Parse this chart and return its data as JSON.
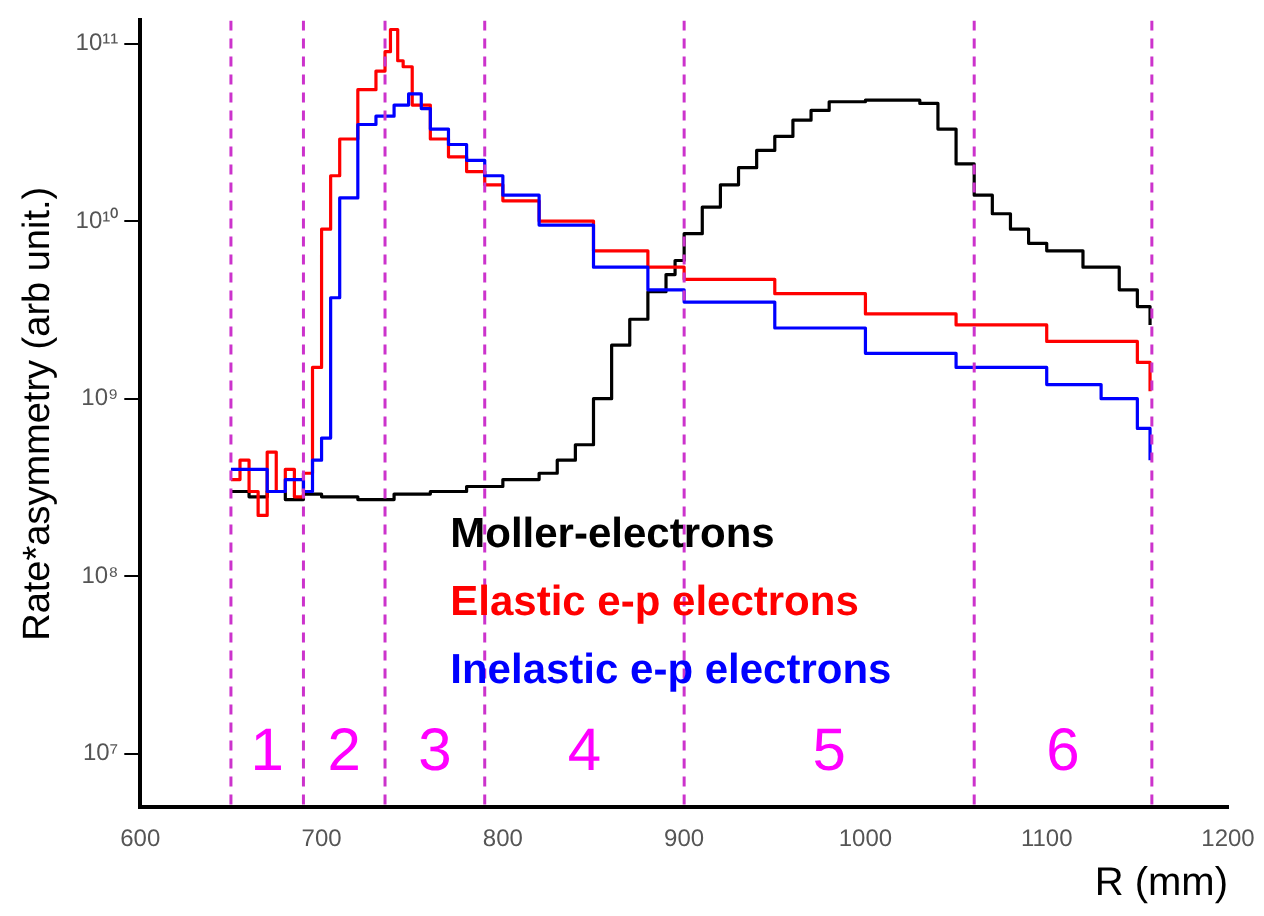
{
  "chart_data": {
    "type": "step",
    "ylabel": "Rate*asymmetry (arb unit.)",
    "xlabel": "R (mm)",
    "log": "y",
    "xlim": [
      600,
      1200
    ],
    "xticks": [
      600,
      700,
      800,
      900,
      1000,
      1100,
      1200
    ],
    "ylim": [
      5000000,
      135000000000
    ],
    "yticks": [
      {
        "value": 10000000,
        "label": "10⁷"
      },
      {
        "value": 100000000,
        "label": "10⁸"
      },
      {
        "value": 1000000000,
        "label": "10⁹"
      },
      {
        "value": 10000000000,
        "label": "10¹⁰"
      },
      {
        "value": 100000000000,
        "label": "10¹¹"
      }
    ],
    "grid": false,
    "legend": "bottom",
    "marker": "none",
    "series": [
      {
        "name": "Moller-electrons",
        "color": "#000000",
        "x": [
          650,
          660,
          670,
          680,
          690,
          700,
          720,
          740,
          760,
          780,
          800,
          820,
          830,
          840,
          850,
          860,
          870,
          880,
          890,
          895,
          900,
          910,
          920,
          930,
          940,
          950,
          960,
          970,
          980,
          1000,
          1020,
          1030,
          1040,
          1050,
          1060,
          1070,
          1080,
          1090,
          1100,
          1120,
          1140,
          1150,
          1157
        ],
        "values": [
          300000000,
          280000000,
          300000000,
          270000000,
          290000000,
          280000000,
          270000000,
          290000000,
          300000000,
          320000000,
          350000000,
          380000000,
          450000000,
          550000000,
          1000000000,
          2000000000,
          2800000000,
          4000000000,
          5000000000,
          6000000000,
          8500000000,
          12000000000,
          16000000000,
          20000000000,
          25000000000,
          30000000000,
          37000000000,
          42000000000,
          47000000000,
          48000000000,
          48000000000,
          46000000000,
          33000000000,
          21000000000,
          14000000000,
          11000000000,
          9000000000,
          7500000000,
          6800000000,
          5500000000,
          4100000000,
          3300000000,
          2600000000
        ]
      },
      {
        "name": "Elastic e-p electrons",
        "color": "#ff0000",
        "x": [
          650,
          655,
          660,
          665,
          670,
          675,
          680,
          685,
          690,
          695,
          700,
          705,
          710,
          720,
          730,
          735,
          738,
          742,
          745,
          750,
          760,
          770,
          780,
          790,
          800,
          820,
          850,
          880,
          900,
          950,
          1000,
          1050,
          1100,
          1150,
          1157
        ],
        "values": [
          350000000,
          450000000,
          300000000,
          220000000,
          500000000,
          300000000,
          400000000,
          280000000,
          380000000,
          1500000000,
          9000000000,
          18000000000,
          29000000000,
          55000000000,
          70000000000,
          90000000000,
          120000000000,
          80000000000,
          74000000000,
          45000000000,
          29000000000,
          23000000000,
          19000000000,
          16000000000,
          13000000000,
          10000000000,
          6800000000,
          5500000000,
          4700000000,
          3900000000,
          3000000000,
          2600000000,
          2100000000,
          1600000000,
          1100000000
        ]
      },
      {
        "name": "Inelastic e-p electrons",
        "color": "#0000ff",
        "x": [
          650,
          660,
          670,
          680,
          690,
          695,
          700,
          705,
          710,
          720,
          730,
          740,
          748,
          755,
          760,
          770,
          780,
          790,
          800,
          820,
          850,
          880,
          900,
          950,
          1000,
          1050,
          1100,
          1130,
          1150,
          1157
        ],
        "values": [
          400000000,
          400000000,
          300000000,
          350000000,
          300000000,
          450000000,
          600000000,
          3700000000,
          13500000000,
          35000000000,
          39000000000,
          45000000000,
          52000000000,
          43000000000,
          33000000000,
          27000000000,
          22000000000,
          18000000000,
          14000000000,
          9500000000,
          5500000000,
          4100000000,
          3500000000,
          2500000000,
          1800000000,
          1500000000,
          1200000000,
          1000000000,
          680000000,
          450000000
        ]
      }
    ],
    "ref_lines": [
      {
        "axis": "x",
        "value": 650,
        "color": "#cc33cc",
        "line_style": "dashed"
      },
      {
        "axis": "x",
        "value": 690,
        "color": "#cc33cc",
        "line_style": "dashed"
      },
      {
        "axis": "x",
        "value": 735,
        "color": "#cc33cc",
        "line_style": "dashed"
      },
      {
        "axis": "x",
        "value": 790,
        "color": "#cc33cc",
        "line_style": "dashed"
      },
      {
        "axis": "x",
        "value": 900,
        "color": "#cc33cc",
        "line_style": "dashed"
      },
      {
        "axis": "x",
        "value": 1060,
        "color": "#cc33cc",
        "line_style": "dashed"
      },
      {
        "axis": "x",
        "value": 1158,
        "color": "#cc33cc",
        "line_style": "dashed"
      }
    ],
    "annotations": [
      "1",
      "2",
      "3",
      "4",
      "5",
      "6"
    ]
  }
}
